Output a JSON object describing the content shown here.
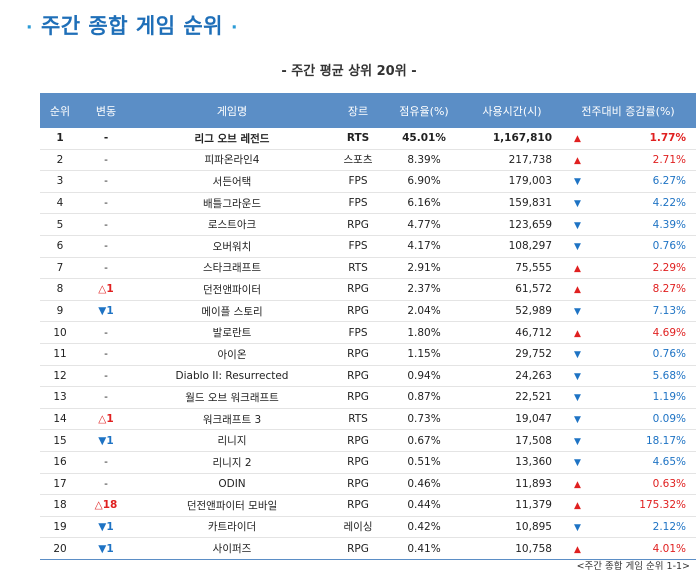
{
  "title": "주간 종합 게임 순위",
  "title_dot": "·",
  "subtitle": "- 주간 평균 상위 20위 -",
  "caption": "<주간 종합 게임 순위 1-1>",
  "colors": {
    "header_bg": "#5b8ec6",
    "up": "#e02020",
    "down": "#1e73c4",
    "title": "#1f6fb8"
  },
  "headers": [
    "순위",
    "변동",
    "게임명",
    "장르",
    "점유율(%)",
    "사용시간(시)",
    "전주대비 증감률(%)"
  ],
  "rows": [
    {
      "rank": "1",
      "change": "-",
      "change_dir": "none",
      "name": "리그 오브 레전드",
      "genre": "RTS",
      "share": "45.01%",
      "hours": "1,167,810",
      "trend": "up",
      "pct": "1.77%"
    },
    {
      "rank": "2",
      "change": "-",
      "change_dir": "none",
      "name": "피파온라인4",
      "genre": "스포츠",
      "share": "8.39%",
      "hours": "217,738",
      "trend": "up",
      "pct": "2.71%"
    },
    {
      "rank": "3",
      "change": "-",
      "change_dir": "none",
      "name": "서든어택",
      "genre": "FPS",
      "share": "6.90%",
      "hours": "179,003",
      "trend": "down",
      "pct": "6.27%"
    },
    {
      "rank": "4",
      "change": "-",
      "change_dir": "none",
      "name": "배틀그라운드",
      "genre": "FPS",
      "share": "6.16%",
      "hours": "159,831",
      "trend": "down",
      "pct": "4.22%"
    },
    {
      "rank": "5",
      "change": "-",
      "change_dir": "none",
      "name": "로스트아크",
      "genre": "RPG",
      "share": "4.77%",
      "hours": "123,659",
      "trend": "down",
      "pct": "4.39%"
    },
    {
      "rank": "6",
      "change": "-",
      "change_dir": "none",
      "name": "오버워치",
      "genre": "FPS",
      "share": "4.17%",
      "hours": "108,297",
      "trend": "down",
      "pct": "0.76%"
    },
    {
      "rank": "7",
      "change": "-",
      "change_dir": "none",
      "name": "스타크래프트",
      "genre": "RTS",
      "share": "2.91%",
      "hours": "75,555",
      "trend": "up",
      "pct": "2.29%"
    },
    {
      "rank": "8",
      "change": "△1",
      "change_dir": "up",
      "name": "던전앤파이터",
      "genre": "RPG",
      "share": "2.37%",
      "hours": "61,572",
      "trend": "up",
      "pct": "8.27%"
    },
    {
      "rank": "9",
      "change": "▼1",
      "change_dir": "down",
      "name": "메이플 스토리",
      "genre": "RPG",
      "share": "2.04%",
      "hours": "52,989",
      "trend": "down",
      "pct": "7.13%"
    },
    {
      "rank": "10",
      "change": "-",
      "change_dir": "none",
      "name": "발로란트",
      "genre": "FPS",
      "share": "1.80%",
      "hours": "46,712",
      "trend": "up",
      "pct": "4.69%"
    },
    {
      "rank": "11",
      "change": "-",
      "change_dir": "none",
      "name": "아이온",
      "genre": "RPG",
      "share": "1.15%",
      "hours": "29,752",
      "trend": "down",
      "pct": "0.76%"
    },
    {
      "rank": "12",
      "change": "-",
      "change_dir": "none",
      "name": "Diablo II: Resurrected",
      "genre": "RPG",
      "share": "0.94%",
      "hours": "24,263",
      "trend": "down",
      "pct": "5.68%"
    },
    {
      "rank": "13",
      "change": "-",
      "change_dir": "none",
      "name": "월드 오브 워크래프트",
      "genre": "RPG",
      "share": "0.87%",
      "hours": "22,521",
      "trend": "down",
      "pct": "1.19%"
    },
    {
      "rank": "14",
      "change": "△1",
      "change_dir": "up",
      "name": "워크래프트 3",
      "genre": "RTS",
      "share": "0.73%",
      "hours": "19,047",
      "trend": "down",
      "pct": "0.09%"
    },
    {
      "rank": "15",
      "change": "▼1",
      "change_dir": "down",
      "name": "리니지",
      "genre": "RPG",
      "share": "0.67%",
      "hours": "17,508",
      "trend": "down",
      "pct": "18.17%"
    },
    {
      "rank": "16",
      "change": "-",
      "change_dir": "none",
      "name": "리니지 2",
      "genre": "RPG",
      "share": "0.51%",
      "hours": "13,360",
      "trend": "down",
      "pct": "4.65%"
    },
    {
      "rank": "17",
      "change": "-",
      "change_dir": "none",
      "name": "ODIN",
      "genre": "RPG",
      "share": "0.46%",
      "hours": "11,893",
      "trend": "up",
      "pct": "0.63%"
    },
    {
      "rank": "18",
      "change": "△18",
      "change_dir": "up",
      "name": "던전앤파이터 모바일",
      "genre": "RPG",
      "share": "0.44%",
      "hours": "11,379",
      "trend": "up",
      "pct": "175.32%"
    },
    {
      "rank": "19",
      "change": "▼1",
      "change_dir": "down",
      "name": "카트라이더",
      "genre": "레이싱",
      "share": "0.42%",
      "hours": "10,895",
      "trend": "down",
      "pct": "2.12%"
    },
    {
      "rank": "20",
      "change": "▼1",
      "change_dir": "down",
      "name": "사이퍼즈",
      "genre": "RPG",
      "share": "0.41%",
      "hours": "10,758",
      "trend": "up",
      "pct": "4.01%"
    }
  ]
}
